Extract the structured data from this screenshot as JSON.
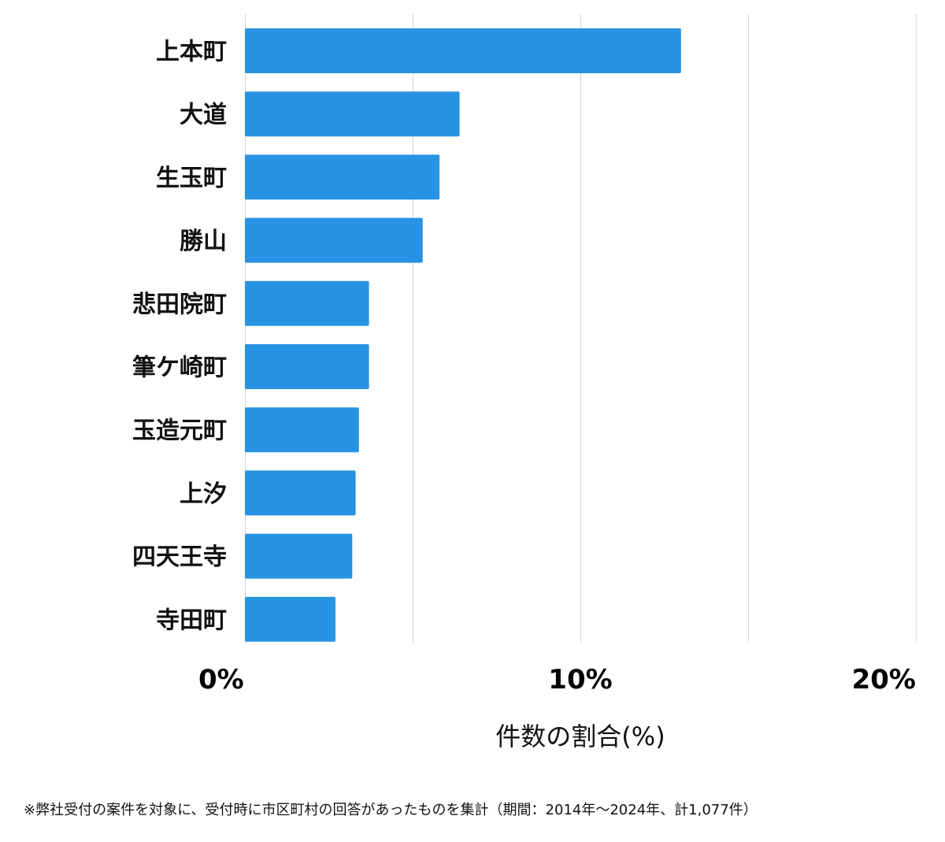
{
  "chart_data": {
    "type": "bar",
    "orientation": "horizontal",
    "categories": [
      "上本町",
      "大道",
      "生玉町",
      "勝山",
      "悲田院町",
      "筆ケ崎町",
      "玉造元町",
      "上汐",
      "四天王寺",
      "寺田町"
    ],
    "values": [
      13.0,
      6.4,
      5.8,
      5.3,
      3.7,
      3.7,
      3.4,
      3.3,
      3.2,
      2.7
    ],
    "xlabel": "件数の割合(%)",
    "ylabel": "",
    "xlim": [
      0,
      20
    ],
    "x_ticks": [
      0,
      10,
      20
    ],
    "x_tick_labels": [
      "0%",
      "10%",
      "20%"
    ],
    "gridlines": [
      0,
      5,
      10,
      15,
      20
    ],
    "grid": true,
    "bar_color": "#2893e3",
    "grid_color": "#d9d9d9"
  },
  "footnote": "※弊社受付の案件を対象に、受付時に市区町村の回答があったものを集計（期間：2014年〜2024年、計1,077件）"
}
